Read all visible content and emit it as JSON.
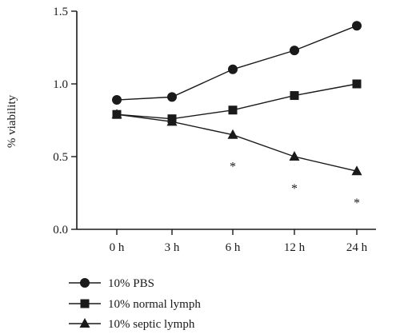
{
  "chart_data": {
    "type": "line",
    "categories": [
      "0 h",
      "3 h",
      "6 h",
      "12 h",
      "24 h"
    ],
    "ylabel": "% viability",
    "xlabel": "",
    "ylim": [
      0,
      1.5
    ],
    "y_ticks": [
      "0.0",
      "0.5",
      "1.0",
      "1.5"
    ],
    "grid": false,
    "legend_position": "bottom-left",
    "series": [
      {
        "name": "10% PBS",
        "marker": "circle",
        "values": [
          0.89,
          0.91,
          1.1,
          1.23,
          1.4
        ]
      },
      {
        "name": "10% normal lymph",
        "marker": "square",
        "values": [
          0.79,
          0.76,
          0.82,
          0.92,
          1.0
        ]
      },
      {
        "name": "10% septic lymph",
        "marker": "triangle",
        "values": [
          0.79,
          0.74,
          0.65,
          0.5,
          0.4
        ]
      }
    ],
    "annotations": [
      {
        "text": "*",
        "category": "6 h"
      },
      {
        "text": "*",
        "category": "12 h"
      },
      {
        "text": "*",
        "category": "24 h"
      }
    ],
    "colors": {
      "line": "#1a1a1a",
      "marker": "#1a1a1a",
      "axis": "#1a1a1a"
    }
  }
}
